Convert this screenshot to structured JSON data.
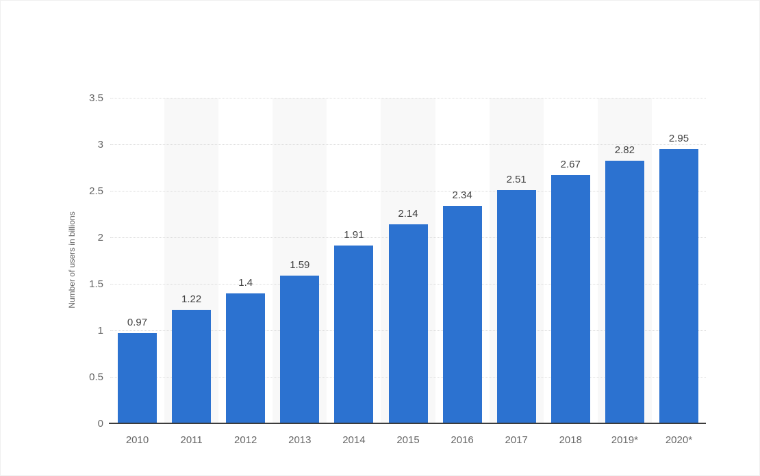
{
  "page": {
    "background_color": "#ffffff"
  },
  "chart_data": {
    "type": "bar",
    "title": "",
    "subtitle": "",
    "categories": [
      "2010",
      "2011",
      "2012",
      "2013",
      "2014",
      "2015",
      "2016",
      "2017",
      "2018",
      "2019*",
      "2020*"
    ],
    "values": [
      0.97,
      1.22,
      1.4,
      1.59,
      1.91,
      2.14,
      2.34,
      2.51,
      2.67,
      2.82,
      2.95
    ],
    "value_labels": [
      "0.97",
      "1.22",
      "1.4",
      "1.59",
      "1.91",
      "2.14",
      "2.34",
      "2.51",
      "2.67",
      "2.82",
      "2.95"
    ],
    "xlabel": "",
    "ylabel": "Number of users in billions",
    "ylim": [
      0,
      3.5
    ],
    "ytick_step": 0.5,
    "yticks": [
      "0",
      "0.5",
      "1",
      "1.5",
      "2",
      "2.5",
      "3",
      "3.5"
    ],
    "grid": "horizontal-dotted",
    "legend": "none",
    "column_bands": "alternating light bands behind odd categories",
    "colors": {
      "bar_fill": "#2c72d0",
      "column_band": "#f8f8f8",
      "gridline": "#d9d9d9",
      "axis_line": "#3c3c3c",
      "tick_text": "#666666",
      "value_label_text": "#424242",
      "background": "#ffffff"
    }
  }
}
